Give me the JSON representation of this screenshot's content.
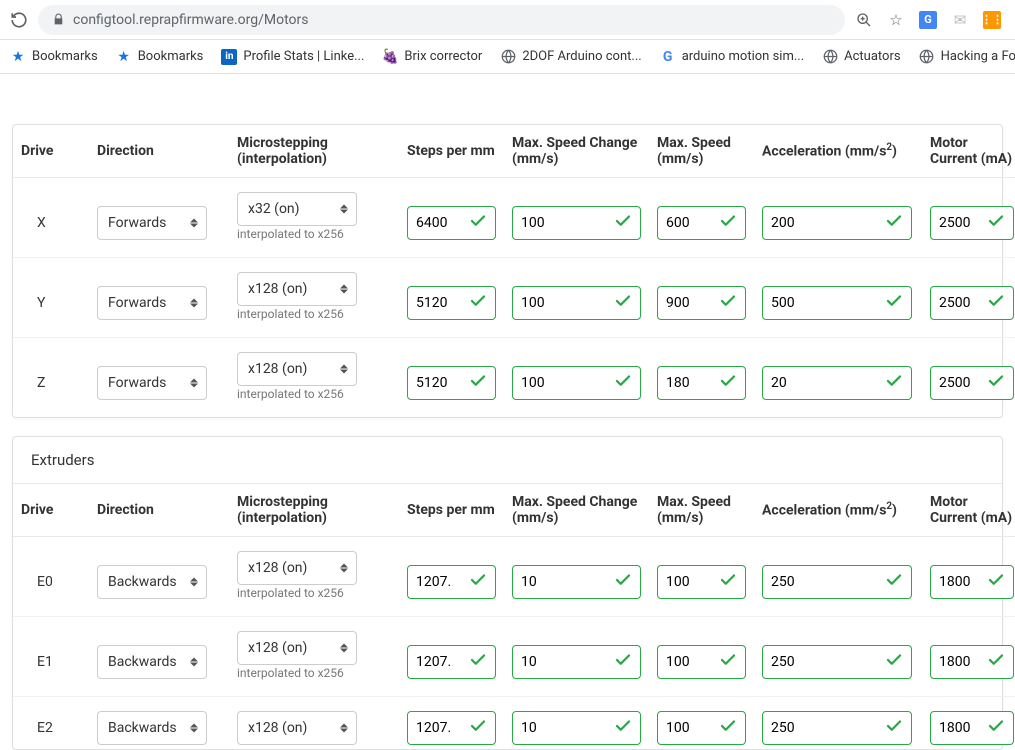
{
  "colors": {
    "valid_border": "#28a745",
    "check": "#28a745",
    "text": "#333333",
    "muted": "#777777",
    "card_border": "#dfdfdf"
  },
  "browser": {
    "url": "configtool.reprapfirmware.org/Motors",
    "bookmarks": [
      {
        "icon": "star",
        "label": "Bookmarks"
      },
      {
        "icon": "star",
        "label": "Bookmarks"
      },
      {
        "icon": "li",
        "label": "Profile Stats | Linke..."
      },
      {
        "icon": "grape",
        "label": "Brix corrector"
      },
      {
        "icon": "globe",
        "label": "2DOF Arduino cont..."
      },
      {
        "icon": "g",
        "label": "arduino motion sim..."
      },
      {
        "icon": "globe",
        "label": "Actuators"
      },
      {
        "icon": "globe",
        "label": "Hacking a Force Fe..."
      }
    ]
  },
  "headers": {
    "drive": "Drive",
    "direction": "Direction",
    "microstep": "Microstepping (interpolation)",
    "steps": "Steps per mm",
    "speed_change": "Max. Speed Change (mm/s)",
    "max_speed": "Max. Speed (mm/s)",
    "accel_html": "Acceleration (mm/s²)",
    "current": "Motor Current (mA)",
    "current_short": "Motor Current"
  },
  "interp_note": "interpolated to x256",
  "sections": {
    "extruders": "Extruders"
  },
  "axes": [
    {
      "drive": "X",
      "direction": "Forwards",
      "microstep": "x32 (on)",
      "steps": "6400",
      "speed_change": "100",
      "max_speed": "600",
      "accel": "200",
      "current": "2500"
    },
    {
      "drive": "Y",
      "direction": "Forwards",
      "microstep": "x128 (on)",
      "steps": "5120",
      "speed_change": "100",
      "max_speed": "900",
      "accel": "500",
      "current": "2500"
    },
    {
      "drive": "Z",
      "direction": "Forwards",
      "microstep": "x128 (on)",
      "steps": "5120",
      "speed_change": "100",
      "max_speed": "180",
      "accel": "20",
      "current": "2500"
    }
  ],
  "extruders": [
    {
      "drive": "E0",
      "direction": "Backwards",
      "microstep": "x128 (on)",
      "steps": "1207.",
      "speed_change": "10",
      "max_speed": "100",
      "accel": "250",
      "current": "1800"
    },
    {
      "drive": "E1",
      "direction": "Backwards",
      "microstep": "x128 (on)",
      "steps": "1207.",
      "speed_change": "10",
      "max_speed": "100",
      "accel": "250",
      "current": "1800"
    },
    {
      "drive": "E2",
      "direction": "Backwards",
      "microstep": "x128 (on)",
      "steps": "1207.",
      "speed_change": "10",
      "max_speed": "100",
      "accel": "250",
      "current": "1800"
    }
  ]
}
